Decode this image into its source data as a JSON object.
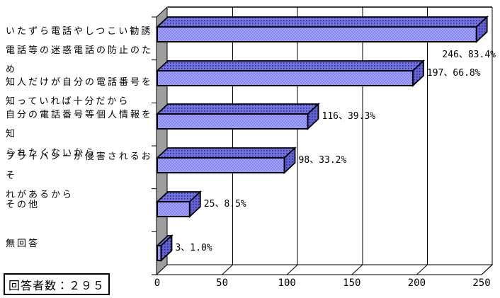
{
  "chart_data": {
    "type": "bar",
    "orientation": "horizontal",
    "style": "3d-horizontal-bar",
    "title": "",
    "xlabel": "",
    "ylabel": "",
    "categories": [
      "いたずら電話やしつこい勧誘\n電話等の迷惑電話の防止のた\nめ",
      "知人だけが自分の電話番号を\n知っていれば十分だから",
      "自分の電話番号等個人情報を知\nられたくないから",
      "プライバシーが侵害されるおそ\nれがあるから",
      "その他",
      "無回答"
    ],
    "values": [
      246,
      197,
      116,
      98,
      25,
      3
    ],
    "percentages": [
      83.4,
      66.8,
      39.3,
      33.2,
      8.5,
      1.0
    ],
    "data_labels": [
      "246、83.4%",
      "197、66.8%",
      "116、39.3%",
      "98、33.2%",
      "25、8.5%",
      "3、1.0%"
    ],
    "xlim": [
      0,
      250
    ],
    "x_ticks": [
      0,
      50,
      100,
      150,
      200,
      250
    ],
    "grid": "vertical",
    "legend": "none",
    "colors": {
      "bar_front": "#8585f6",
      "bar_front_light": "#a4a4ff",
      "bar_top": "#7272e2",
      "bar_side": "#6262d4",
      "bar_dot": "#2a2a7e",
      "wall": "#9e9e9e",
      "grid": "#000000",
      "background": "#ffffff"
    }
  },
  "footer": {
    "respondents_label": "回答者数：２９５"
  }
}
